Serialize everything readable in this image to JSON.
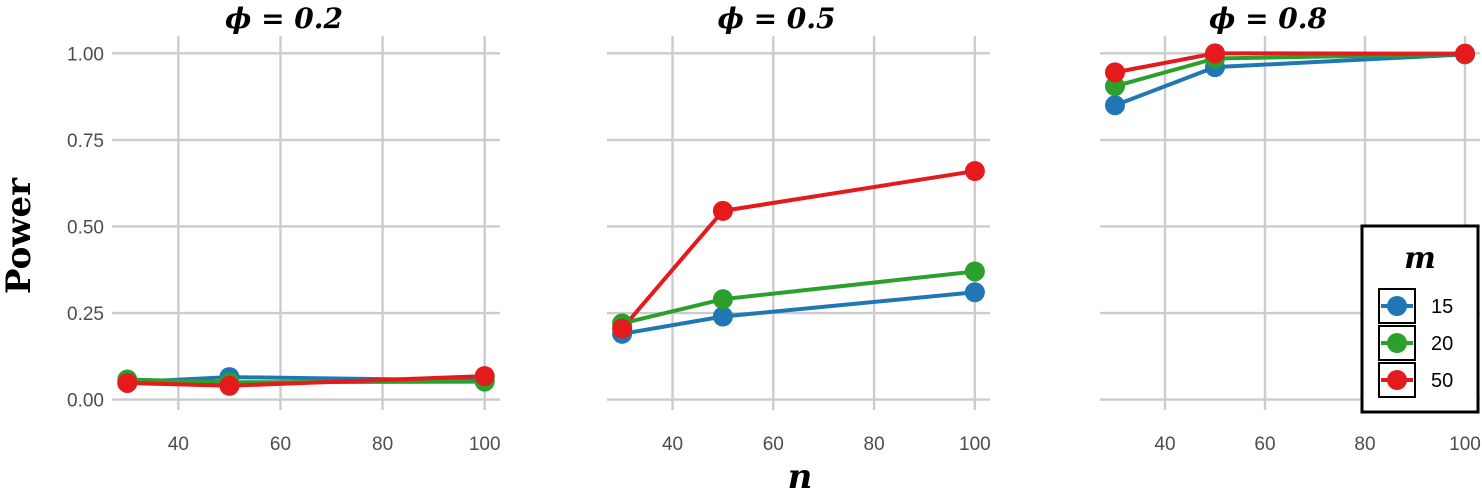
{
  "chart_data": {
    "type": "line",
    "ylabel": "Power",
    "xlabel": "n",
    "x_ticks": [
      40,
      60,
      80,
      100
    ],
    "y_ticks": [
      0.0,
      0.25,
      0.5,
      0.75,
      1.0
    ],
    "y_tick_labels": [
      "0.00",
      "0.25",
      "0.50",
      "0.75",
      "1.00"
    ],
    "xlim": [
      27,
      103
    ],
    "ylim": [
      -0.03,
      1.05
    ],
    "grid": true,
    "legend": {
      "title": "m",
      "placement": "right-bottom",
      "entries": [
        "15",
        "20",
        "50"
      ]
    },
    "colors": {
      "15": "#1f77b4",
      "20": "#2ca02c",
      "50": "#e41a1c"
    },
    "x": [
      30,
      50,
      100
    ],
    "facets": [
      {
        "title": "ϕ = 0.2",
        "series": [
          {
            "name": "15",
            "values": [
              0.05,
              0.065,
              0.055
            ]
          },
          {
            "name": "20",
            "values": [
              0.058,
              0.05,
              0.052
            ]
          },
          {
            "name": "50",
            "values": [
              0.048,
              0.04,
              0.068
            ]
          }
        ]
      },
      {
        "title": "ϕ = 0.5",
        "series": [
          {
            "name": "15",
            "values": [
              0.19,
              0.24,
              0.31
            ]
          },
          {
            "name": "20",
            "values": [
              0.22,
              0.29,
              0.37
            ]
          },
          {
            "name": "50",
            "values": [
              0.205,
              0.545,
              0.66
            ]
          }
        ]
      },
      {
        "title": "ϕ = 0.8",
        "series": [
          {
            "name": "15",
            "values": [
              0.85,
              0.96,
              0.997
            ]
          },
          {
            "name": "20",
            "values": [
              0.905,
              0.985,
              0.998
            ]
          },
          {
            "name": "50",
            "values": [
              0.945,
              1.0,
              0.999
            ]
          }
        ]
      }
    ]
  }
}
